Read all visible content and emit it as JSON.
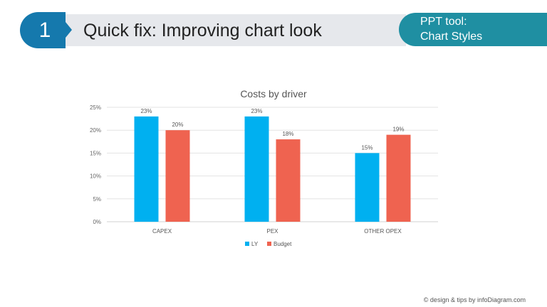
{
  "header": {
    "step_number": "1",
    "title": "Quick fix: Improving chart look",
    "tool_line1": "PPT tool:",
    "tool_line2": "Chart Styles"
  },
  "footer": "© design & tips by infoDiagram.com",
  "colors": {
    "badge": "#1579ad",
    "pill": "#1f8fa2",
    "LY": "#00b0f0",
    "Budget": "#ef6350"
  },
  "chart_data": {
    "type": "bar",
    "title": "Costs by driver",
    "categories": [
      "CAPEX",
      "PEX",
      "OTHER OPEX"
    ],
    "series": [
      {
        "name": "LY",
        "values": [
          23,
          23,
          15
        ],
        "labels": [
          "23%",
          "23%",
          "15%"
        ]
      },
      {
        "name": "Budget",
        "values": [
          20,
          18,
          19
        ],
        "labels": [
          "20%",
          "18%",
          "19%"
        ]
      }
    ],
    "ylim": [
      0,
      25
    ],
    "yticks": [
      "0%",
      "5%",
      "10%",
      "15%",
      "20%",
      "25%"
    ],
    "grid": true,
    "legend": "bottom"
  }
}
